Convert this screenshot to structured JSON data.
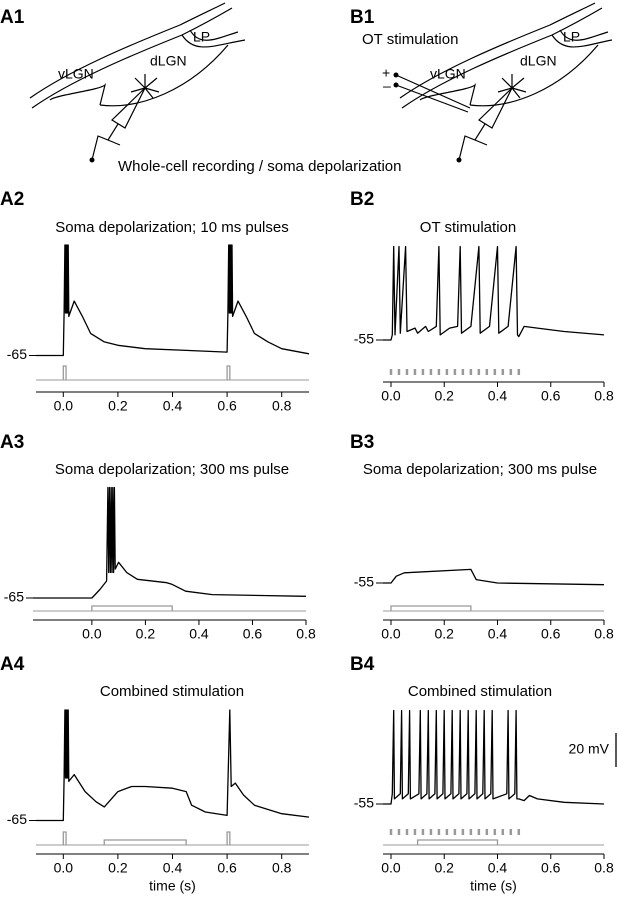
{
  "schematics": {
    "a_label": "A1",
    "b_label": "B1",
    "lp": "LP",
    "vlgn": "vLGN",
    "dlgn": "dLGN",
    "recording": "Whole-cell recording / soma depolarization",
    "ot": "OT stimulation",
    "plus": "+",
    "minus": "–"
  },
  "chart_data": [
    {
      "type": "line",
      "label": "A2",
      "title": "Soma depolarization; 10 ms pulses",
      "color": "#000000",
      "stim_color": "#999999",
      "xlim": [
        -0.1,
        0.9
      ],
      "xticks": [
        {
          "value": 0,
          "label": "0.0"
        },
        0.2,
        0.4,
        0.6,
        0.8
      ],
      "ylim": [
        -70,
        0
      ],
      "yticks": [
        -65
      ],
      "x": [
        -0.1,
        0,
        0.003,
        0.006,
        0.008,
        0.01,
        0.012,
        0.014,
        0.016,
        0.018,
        0.02,
        0.04,
        0.07,
        0.1,
        0.15,
        0.2,
        0.3,
        0.45,
        0.6,
        0.603,
        0.606,
        0.608,
        0.61,
        0.612,
        0.614,
        0.616,
        0.618,
        0.62,
        0.64,
        0.67,
        0.7,
        0.75,
        0.8,
        0.9
      ],
      "values": [
        -65,
        -65,
        -40,
        0,
        -40,
        0,
        -40,
        0,
        -40,
        0,
        -42,
        -33,
        -42,
        -52,
        -57,
        -59,
        -61,
        -62,
        -63,
        -40,
        0,
        -40,
        0,
        -40,
        0,
        -40,
        0,
        -42,
        -33,
        -42,
        -52,
        -57,
        -61,
        -64
      ],
      "pulses": [
        [
          0,
          0.01
        ],
        [
          0.6,
          0.61
        ]
      ]
    },
    {
      "type": "line",
      "label": "B2",
      "title": "OT stimulation",
      "color": "#000000",
      "stim_color": "#999999",
      "xlim": [
        -0.03,
        0.8
      ],
      "xticks": [
        {
          "value": 0,
          "label": "0.0"
        },
        0.2,
        0.4,
        0.6,
        0.8
      ],
      "ylim": [
        -70,
        0
      ],
      "yticks": [
        -55
      ],
      "x": [
        -0.03,
        0,
        0.005,
        0.01,
        0.015,
        0.03,
        0.035,
        0.055,
        0.06,
        0.09,
        0.1,
        0.13,
        0.14,
        0.17,
        0.18,
        0.185,
        0.22,
        0.25,
        0.26,
        0.265,
        0.3,
        0.33,
        0.335,
        0.37,
        0.4,
        0.405,
        0.44,
        0.47,
        0.475,
        0.48,
        0.5,
        0.55,
        0.65,
        0.8
      ],
      "values": [
        -55,
        -55,
        -52,
        0,
        -52,
        0,
        -51,
        0,
        -50,
        -48,
        -51,
        -47,
        -50,
        -47,
        0,
        -52,
        -48,
        -47,
        0,
        -51,
        -47,
        0,
        -51,
        -47,
        0,
        -51,
        -47,
        0,
        -52,
        -53,
        -47,
        -48,
        -50,
        -52
      ],
      "train": [
        0,
        0.03,
        0.06,
        0.09,
        0.12,
        0.15,
        0.18,
        0.21,
        0.24,
        0.27,
        0.3,
        0.33,
        0.36,
        0.39,
        0.42,
        0.45,
        0.48
      ]
    },
    {
      "type": "line",
      "label": "A3",
      "title": "Soma depolarization; 300 ms pulse",
      "color": "#000000",
      "stim_color": "#999999",
      "xlim": [
        -0.22,
        0.8
      ],
      "xticks": [
        {
          "value": 0,
          "label": "0.0"
        },
        0.2,
        0.4,
        0.6,
        0.8
      ],
      "ylim": [
        -70,
        0
      ],
      "yticks": [
        -65
      ],
      "x": [
        -0.22,
        0,
        0.03,
        0.055,
        0.06,
        0.063,
        0.066,
        0.069,
        0.072,
        0.075,
        0.078,
        0.081,
        0.084,
        0.087,
        0.1,
        0.13,
        0.17,
        0.28,
        0.3,
        0.35,
        0.45,
        0.8
      ],
      "values": [
        -65,
        -65,
        -60,
        -55,
        0,
        -50,
        0,
        -50,
        0,
        -50,
        0,
        -50,
        0,
        -48,
        -44,
        -50,
        -54,
        -56,
        -57,
        -61,
        -63,
        -64
      ],
      "steps": [
        [
          0,
          0.3
        ]
      ]
    },
    {
      "type": "line",
      "label": "B3",
      "title": "Soma depolarization; 300 ms pulse",
      "color": "#000000",
      "stim_color": "#999999",
      "xlim": [
        -0.03,
        0.8
      ],
      "xticks": [
        {
          "value": 0,
          "label": "0.0"
        },
        0.2,
        0.4,
        0.6,
        0.8
      ],
      "ylim": [
        -70,
        0
      ],
      "yticks": [
        -55
      ],
      "x": [
        -0.03,
        0,
        0.02,
        0.05,
        0.3,
        0.32,
        0.4,
        0.8
      ],
      "values": [
        -55,
        -55,
        -51,
        -49,
        -47,
        -53,
        -55,
        -56
      ],
      "steps": [
        [
          0,
          0.3
        ]
      ]
    },
    {
      "type": "line",
      "label": "A4",
      "title": "Combined stimulation",
      "xlabel": "time (s)",
      "color": "#000000",
      "stim_color": "#999999",
      "xlim": [
        -0.1,
        0.9
      ],
      "xticks": [
        {
          "value": 0,
          "label": "0.0"
        },
        0.2,
        0.4,
        0.6,
        0.8
      ],
      "ylim": [
        -70,
        0
      ],
      "yticks": [
        -65
      ],
      "x": [
        -0.1,
        0,
        0.003,
        0.006,
        0.008,
        0.01,
        0.012,
        0.014,
        0.016,
        0.018,
        0.02,
        0.04,
        0.08,
        0.12,
        0.15,
        0.2,
        0.25,
        0.3,
        0.4,
        0.45,
        0.47,
        0.52,
        0.6,
        0.61,
        0.615,
        0.63,
        0.66,
        0.7,
        0.8,
        0.9
      ],
      "values": [
        -65,
        -65,
        -40,
        0,
        -40,
        0,
        -40,
        0,
        -40,
        0,
        -42,
        -38,
        -48,
        -54,
        -57,
        -48,
        -45,
        -45,
        -46,
        -48,
        -56,
        -60,
        -62,
        0,
        -45,
        -43,
        -50,
        -56,
        -61,
        -63
      ],
      "pulses": [
        [
          0,
          0.01
        ],
        [
          0.6,
          0.61
        ]
      ],
      "steps": [
        [
          0.15,
          0.45
        ]
      ]
    },
    {
      "type": "line",
      "label": "B4",
      "title": "Combined stimulation",
      "xlabel": "time (s)",
      "color": "#000000",
      "stim_color": "#999999",
      "xlim": [
        -0.03,
        0.8
      ],
      "xticks": [
        {
          "value": 0,
          "label": "0.0"
        },
        0.2,
        0.4,
        0.6,
        0.8
      ],
      "ylim": [
        -70,
        0
      ],
      "yticks": [
        -55
      ],
      "x": [
        -0.03,
        0,
        0.005,
        0.01,
        0.013,
        0.035,
        0.04,
        0.043,
        0.065,
        0.07,
        0.073,
        0.105,
        0.11,
        0.113,
        0.135,
        0.14,
        0.143,
        0.165,
        0.17,
        0.173,
        0.195,
        0.2,
        0.203,
        0.225,
        0.23,
        0.233,
        0.255,
        0.26,
        0.263,
        0.285,
        0.29,
        0.293,
        0.315,
        0.32,
        0.323,
        0.345,
        0.35,
        0.353,
        0.375,
        0.38,
        0.383,
        0.435,
        0.44,
        0.443,
        0.465,
        0.47,
        0.473,
        0.48,
        0.5,
        0.52,
        0.55,
        0.65,
        0.8
      ],
      "values": [
        -55,
        -55,
        -49,
        0,
        -52,
        -49,
        0,
        -52,
        -49,
        0,
        -52,
        -49,
        0,
        -52,
        -49,
        0,
        -52,
        -49,
        0,
        -52,
        -49,
        0,
        -52,
        -49,
        0,
        -52,
        -49,
        0,
        -52,
        -49,
        0,
        -52,
        -49,
        0,
        -52,
        -49,
        0,
        -52,
        -49,
        0,
        -52,
        -49,
        0,
        -52,
        -49,
        0,
        -52,
        -52,
        -53,
        -50,
        -52,
        -54,
        -55
      ],
      "train": [
        0,
        0.03,
        0.06,
        0.09,
        0.12,
        0.15,
        0.18,
        0.21,
        0.24,
        0.27,
        0.3,
        0.33,
        0.36,
        0.39,
        0.42,
        0.45,
        0.48
      ],
      "steps": [
        [
          0.1,
          0.4
        ]
      ],
      "scale_bar": {
        "value": 20,
        "label": "20 mV"
      }
    }
  ]
}
